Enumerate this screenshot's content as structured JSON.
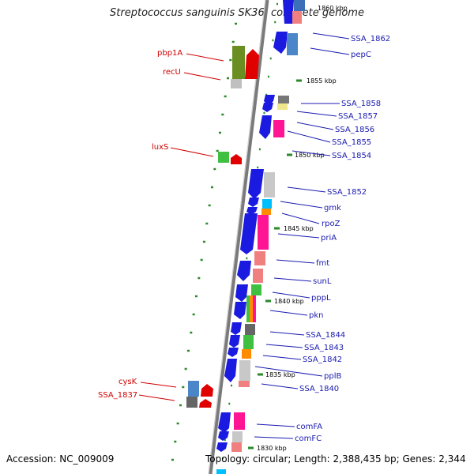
{
  "title": "Streptococcus sanguinis SK36, complete genome",
  "accession": "Accession: NC_009009",
  "topology": "Topology: circular; Length: 2,388,435 bp; Genes: 2,344",
  "scale_labels": [
    "1860 kbp",
    "1855 kbp",
    "1850 kbp",
    "1845 kbp",
    "1840 kbp",
    "1835 kbp",
    "1830 kbp"
  ],
  "right_genes": [
    "SSA_1862",
    "pepC",
    "SSA_1858",
    "SSA_1857",
    "SSA_1856",
    "SSA_1855",
    "SSA_1854",
    "SSA_1852",
    "gmk",
    "rpoZ",
    "priA",
    "fmt",
    "sunL",
    "pppL",
    "pkn",
    "SSA_1844",
    "SSA_1843",
    "SSA_1842",
    "pplB",
    "SSA_1840",
    "comFA",
    "comFC"
  ],
  "left_genes": [
    "pbp1A",
    "recU",
    "luxS",
    "cysK",
    "SSA_1837"
  ],
  "colors": {
    "backbone": "#8c8c8c",
    "forward_strand": "#1010e0",
    "reverse_strand": "#e00000",
    "label_right": "#1a1ab0",
    "label_left": "#d00000",
    "tick": "#2a8a2a"
  }
}
